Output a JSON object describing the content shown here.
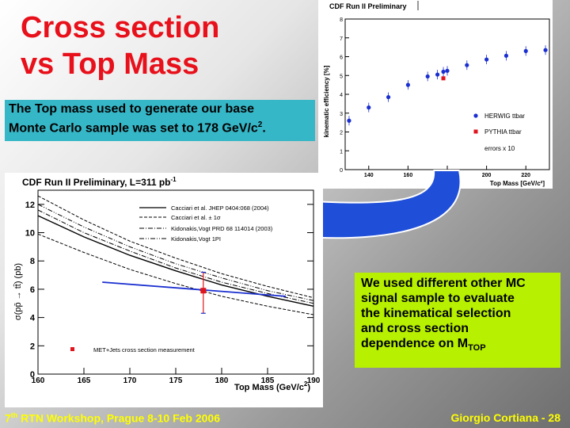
{
  "slide": {
    "title_line1": "Cross section",
    "title_line2": "vs Top Mass",
    "note_line1": "The Top mass used to generate our base",
    "note_line2_a": "Monte Carlo sample was set to 178 GeV/c",
    "note_line2_sup": "2",
    "note_line2_b": ".",
    "green_line1": "We used different other MC",
    "green_line2": "signal sample to evaluate",
    "green_line3": "the kinematical selection",
    "green_line4": "and cross section",
    "green_line5_a": "dependence on M",
    "green_line5_sub": "TOP",
    "footer_left_a": "7",
    "footer_left_sup": "th",
    "footer_left_b": " RTN Workshop, Prague 8-10 Feb 2006",
    "footer_right": "Giorgio Cortiana  - 28",
    "colors": {
      "title": "#e8101a",
      "cyan_box": "#36b7c7",
      "green_box": "#b7f000",
      "footer": "#ffff00",
      "arrow": "#1f4fd8"
    }
  },
  "chart_data": [
    {
      "type": "scatter",
      "title": "CDF Run II Preliminary",
      "xlabel": "Top Mass [GeV/c²]",
      "ylabel": "kinematic efficiency [%]",
      "xlim": [
        128,
        232
      ],
      "ylim": [
        0,
        8
      ],
      "xticks": [
        140,
        160,
        180,
        200,
        220
      ],
      "yticks": [
        0,
        1,
        2,
        3,
        4,
        5,
        6,
        7,
        8
      ],
      "series": [
        {
          "name": "HERWIG ttbar",
          "color": "#1a2fd0",
          "marker": "circle",
          "x": [
            130,
            140,
            150,
            160,
            170,
            175,
            178,
            180,
            190,
            200,
            210,
            220,
            230
          ],
          "y": [
            2.6,
            3.3,
            3.85,
            4.5,
            4.95,
            5.05,
            5.2,
            5.25,
            5.55,
            5.85,
            6.05,
            6.3,
            6.35
          ]
        },
        {
          "name": "PYTHIA ttbar",
          "color": "#e0141c",
          "marker": "square",
          "x": [
            178
          ],
          "y": [
            4.85
          ]
        }
      ],
      "legend_extra": "errors x 10",
      "legend_position": "bottom-right",
      "grid": false
    },
    {
      "type": "line",
      "title": "CDF Run II Preliminary, L=311 pb",
      "title_sup": "-1",
      "xlabel": "Top Mass (GeV/c",
      "xlabel_sup": "2",
      "xlabel_end": ")",
      "ylabel": "σ(pp̄ → tt̄) (pb)",
      "xlim": [
        160,
        190
      ],
      "ylim": [
        0,
        13
      ],
      "xticks": [
        160,
        165,
        170,
        175,
        180,
        185,
        190
      ],
      "yticks": [
        0,
        2,
        4,
        6,
        8,
        10,
        12
      ],
      "series": [
        {
          "name": "Cacciari et al. JHEP 0404:068 (2004)",
          "style": "solid",
          "x": [
            160,
            165,
            170,
            175,
            180,
            185,
            190
          ],
          "y": [
            11.2,
            9.7,
            8.4,
            7.3,
            6.3,
            5.5,
            4.8
          ]
        },
        {
          "name": "Cacciari et al. ± 1σ",
          "style": "dashed",
          "x": [
            160,
            165,
            170,
            175,
            180,
            185,
            190
          ],
          "y": [
            12.6,
            10.9,
            9.4,
            8.2,
            7.1,
            6.2,
            5.4
          ]
        },
        {
          "name": "Cacciari et al. ± 1σ (lower)",
          "style": "dashed",
          "x": [
            160,
            165,
            170,
            175,
            180,
            185,
            190
          ],
          "y": [
            9.9,
            8.6,
            7.4,
            6.4,
            5.5,
            4.8,
            4.2
          ]
        },
        {
          "name": "Kidonakis,Vogt PRD 68 114014 (2003)",
          "style": "dashdot",
          "x": [
            160,
            165,
            170,
            175,
            180,
            185,
            190
          ],
          "y": [
            11.6,
            10.0,
            8.7,
            7.5,
            6.5,
            5.7,
            5.0
          ]
        },
        {
          "name": "Kidonakis,Vogt 1PI",
          "style": "dashdotdot",
          "x": [
            160,
            165,
            170,
            175,
            180,
            185,
            190
          ],
          "y": [
            12.0,
            10.4,
            9.0,
            7.8,
            6.8,
            5.9,
            5.2
          ]
        }
      ],
      "measurement": {
        "label": "MET+Jets cross section measurement",
        "color": "#e0141c",
        "x": 178,
        "y": 5.9,
        "y_low": 4.3,
        "y_high": 7.2
      },
      "fit_line": {
        "color": "#1a2fd0",
        "x": [
          167,
          187
        ],
        "y": [
          6.5,
          5.5
        ]
      },
      "legend_position": "top-right",
      "grid": false
    }
  ]
}
